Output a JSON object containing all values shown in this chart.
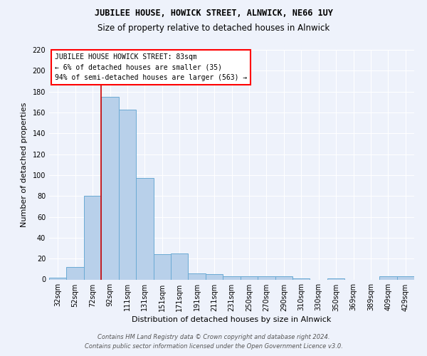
{
  "title1": "JUBILEE HOUSE, HOWICK STREET, ALNWICK, NE66 1UY",
  "title2": "Size of property relative to detached houses in Alnwick",
  "xlabel": "Distribution of detached houses by size in Alnwick",
  "ylabel": "Number of detached properties",
  "categories": [
    "32sqm",
    "52sqm",
    "72sqm",
    "92sqm",
    "111sqm",
    "131sqm",
    "151sqm",
    "171sqm",
    "191sqm",
    "211sqm",
    "231sqm",
    "250sqm",
    "270sqm",
    "290sqm",
    "310sqm",
    "330sqm",
    "350sqm",
    "369sqm",
    "389sqm",
    "409sqm",
    "429sqm"
  ],
  "values": [
    2,
    12,
    80,
    175,
    163,
    97,
    24,
    25,
    6,
    5,
    3,
    3,
    3,
    3,
    1,
    0,
    1,
    0,
    0,
    3,
    3
  ],
  "bar_color": "#b8d0ea",
  "bar_edge_color": "#6aaad4",
  "ylim": [
    0,
    220
  ],
  "yticks": [
    0,
    20,
    40,
    60,
    80,
    100,
    120,
    140,
    160,
    180,
    200,
    220
  ],
  "red_line_x": 2.5,
  "annotation_line1": "JUBILEE HOUSE HOWICK STREET: 83sqm",
  "annotation_line2": "← 6% of detached houses are smaller (35)",
  "annotation_line3": "94% of semi-detached houses are larger (563) →",
  "footer1": "Contains HM Land Registry data © Crown copyright and database right 2024.",
  "footer2": "Contains public sector information licensed under the Open Government Licence v3.0.",
  "bg_color": "#eef2fb",
  "plot_bg_color": "#eef2fb",
  "grid_color": "#ffffff",
  "title1_fontsize": 8.5,
  "title2_fontsize": 8.5,
  "xlabel_fontsize": 8,
  "ylabel_fontsize": 8,
  "tick_fontsize": 7,
  "annot_fontsize": 7,
  "footer_fontsize": 6
}
